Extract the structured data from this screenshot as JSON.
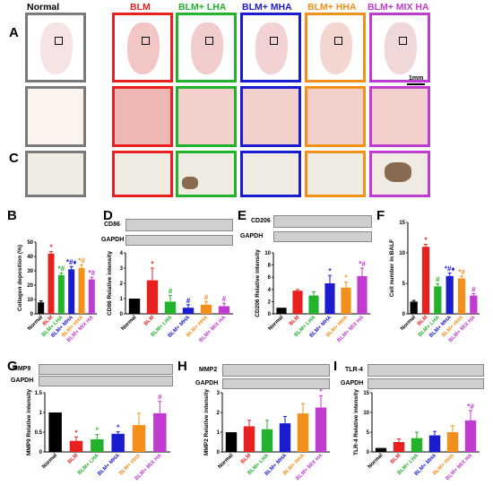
{
  "column_headers": [
    {
      "label": "Normal",
      "color": "#000000"
    },
    {
      "label": "BLM",
      "color": "#e8201f"
    },
    {
      "label": "BLM+ LHA",
      "color": "#22b22b"
    },
    {
      "label": "BLM+ MHA",
      "color": "#1b1bd0"
    },
    {
      "label": "BLM+ HHA",
      "color": "#f3901c"
    },
    {
      "label": "BLM+ MIX HA",
      "color": "#c03bd0"
    }
  ],
  "panel_labels": {
    "A": "A",
    "B": "B",
    "C": "C",
    "D": "D",
    "E": "E",
    "F": "F",
    "G": "G",
    "H": "H",
    "I": "I"
  },
  "scale_label": "1mm",
  "group_colors": [
    "#000000",
    "#e8201f",
    "#22b22b",
    "#1b1bd0",
    "#f3901c",
    "#c03bd0"
  ],
  "blot_labels": {
    "cd86": "CD86",
    "gapdh": "GAPDH",
    "cd206": "CD206",
    "mmp9": "MMP9",
    "mmp2": "MMP2",
    "tlr4": "TLR-4"
  },
  "chart_data": [
    {
      "id": "B",
      "type": "bar",
      "ylabel": "Collagen deposition (%)",
      "ylim": [
        0,
        50
      ],
      "yticks": [
        0,
        10,
        20,
        30,
        40,
        50
      ],
      "categories": [
        "Normal",
        "BLM",
        "BLM+ LHA",
        "BLM+ MHA",
        "BLM+ HHA",
        "BLM+ MIX HA"
      ],
      "values": [
        8,
        42,
        27,
        31,
        32,
        24
      ],
      "errors": [
        1,
        1.5,
        1.5,
        2,
        2,
        1.5
      ],
      "annotations": [
        "",
        "*",
        "*#",
        "*#♦",
        "*#",
        "*#"
      ]
    },
    {
      "id": "D",
      "type": "bar",
      "ylabel": "CD86 Relative intensity",
      "ylim": [
        0,
        4
      ],
      "yticks": [
        0,
        1,
        2,
        3,
        4
      ],
      "categories": [
        "Normal",
        "BLM",
        "BLM+ LHA",
        "BLM+ MHA",
        "BLM+ HHA",
        "BLM+ MIX HA"
      ],
      "values": [
        1,
        2.2,
        0.8,
        0.4,
        0.6,
        0.5
      ],
      "errors": [
        0,
        0.8,
        0.4,
        0.2,
        0.2,
        0.2
      ],
      "annotations": [
        "",
        "*",
        "#",
        "#",
        "#",
        "#"
      ]
    },
    {
      "id": "E",
      "type": "bar",
      "ylabel": "CD206 Relative intensity",
      "ylim": [
        0,
        10
      ],
      "yticks": [
        0,
        2,
        4,
        6,
        8,
        10
      ],
      "categories": [
        "Normal",
        "BLM",
        "BLM+ LHA",
        "BLM+ MHA",
        "BLM+ HHA",
        "BLM+ MIX HA"
      ],
      "values": [
        1,
        3.8,
        3,
        5,
        4.3,
        6.2
      ],
      "errors": [
        0,
        0.2,
        0.6,
        1.3,
        0.9,
        1.3
      ],
      "annotations": [
        "",
        "",
        "",
        "*",
        "*",
        "*#"
      ]
    },
    {
      "id": "F",
      "type": "bar",
      "ylabel": "Cell number in BALF",
      "ylim": [
        0,
        15
      ],
      "yticks": [
        0,
        5,
        10,
        15
      ],
      "categories": [
        "Normal",
        "BLM",
        "BLM+ LHA",
        "BLM+ MHA",
        "BLM+ HHA",
        "BLM+ MIX HA"
      ],
      "values": [
        2,
        11,
        4.5,
        6.2,
        5.8,
        3
      ],
      "errors": [
        0.2,
        0.4,
        0.4,
        0.5,
        0.4,
        0.3
      ],
      "annotations": [
        "",
        "*",
        "#",
        "*#♦",
        "*#",
        "#"
      ]
    },
    {
      "id": "G",
      "type": "bar",
      "ylabel": "MMP9 Relative intensity",
      "ylim": [
        0,
        1.5
      ],
      "yticks": [
        0,
        0.5,
        1.0,
        1.5
      ],
      "categories": [
        "Normal",
        "BLM",
        "BLM+ LHA",
        "BLM+ MHA",
        "BLM+ HHA",
        "BLM+ MIX HA"
      ],
      "values": [
        1,
        0.28,
        0.32,
        0.46,
        0.68,
        0.98
      ],
      "errors": [
        0,
        0.1,
        0.12,
        0.05,
        0.3,
        0.3
      ],
      "annotations": [
        "",
        "*",
        "*",
        "*",
        "",
        "#"
      ]
    },
    {
      "id": "H",
      "type": "bar",
      "ylabel": "MMP2 Relative intensity",
      "ylim": [
        0,
        3
      ],
      "yticks": [
        0,
        1,
        2,
        3
      ],
      "categories": [
        "Normal",
        "BLM",
        "BLM+ LHA",
        "BLM+ MHA",
        "BLM+ HHA",
        "BLM+ MIX HA"
      ],
      "values": [
        1,
        1.3,
        1.15,
        1.45,
        1.95,
        2.25
      ],
      "errors": [
        0,
        0.3,
        0.45,
        0.35,
        0.5,
        0.6
      ],
      "annotations": [
        "",
        "",
        "",
        "",
        "",
        "*"
      ]
    },
    {
      "id": "I",
      "type": "bar",
      "ylabel": "TLR-4 Relative intensity",
      "ylim": [
        0,
        15
      ],
      "yticks": [
        0,
        5,
        10,
        15
      ],
      "categories": [
        "Normal",
        "BLM",
        "BLM+ LHA",
        "BLM+ MHA",
        "BLM+ HHA",
        "BLM+ MIX HA"
      ],
      "values": [
        1,
        2.5,
        3.5,
        4.2,
        5,
        8
      ],
      "errors": [
        0,
        0.8,
        1.5,
        1,
        1.6,
        2.5
      ],
      "annotations": [
        "",
        "",
        "",
        "",
        "",
        "*#"
      ]
    }
  ]
}
